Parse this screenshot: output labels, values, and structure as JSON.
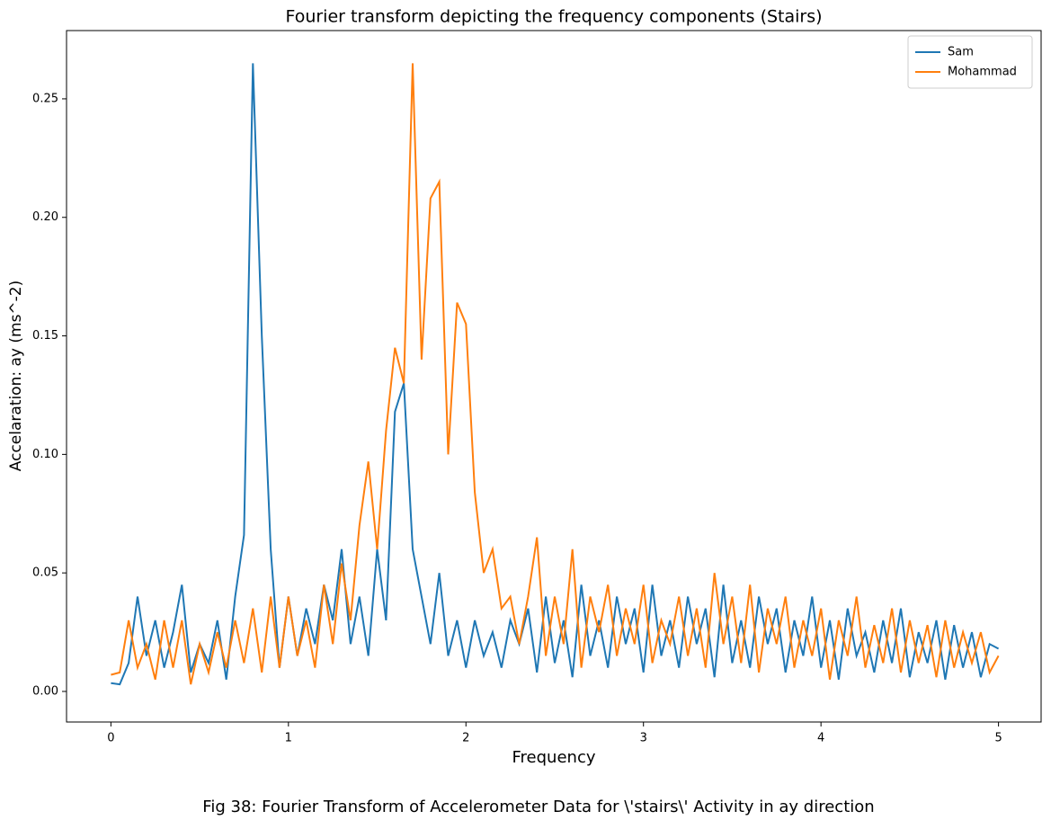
{
  "chart_data": {
    "type": "line",
    "title": "Fourier transform depicting the frequency components (Stairs)",
    "x_label": "Frequency",
    "y_label": "Accelaration: ay (ms^-2)",
    "caption": "Fig 38: Fourier Transform of Accelerometer Data for \\'stairs\\' Activity in ay direction",
    "x": [
      0,
      0.05,
      0.1,
      0.15,
      0.2,
      0.25,
      0.3,
      0.35,
      0.4,
      0.45,
      0.5,
      0.55,
      0.6,
      0.65,
      0.7,
      0.75,
      0.8,
      0.85,
      0.9,
      0.95,
      1,
      1.05,
      1.1,
      1.15,
      1.2,
      1.25,
      1.3,
      1.35,
      1.4,
      1.45,
      1.5,
      1.55,
      1.6,
      1.65,
      1.7,
      1.75,
      1.8,
      1.85,
      1.9,
      1.95,
      2,
      2.05,
      2.1,
      2.15,
      2.2,
      2.25,
      2.3,
      2.35,
      2.4,
      2.45,
      2.5,
      2.55,
      2.6,
      2.65,
      2.7,
      2.75,
      2.8,
      2.85,
      2.9,
      2.95,
      3,
      3.05,
      3.1,
      3.15,
      3.2,
      3.25,
      3.3,
      3.35,
      3.4,
      3.45,
      3.5,
      3.55,
      3.6,
      3.65,
      3.7,
      3.75,
      3.8,
      3.85,
      3.9,
      3.95,
      4,
      4.05,
      4.1,
      4.15,
      4.2,
      4.25,
      4.3,
      4.35,
      4.4,
      4.45,
      4.5,
      4.55,
      4.6,
      4.65,
      4.7,
      4.75,
      4.8,
      4.85,
      4.9,
      4.95,
      5
    ],
    "series": [
      {
        "name": "Sam",
        "color": "#1f77b4",
        "values": [
          0.0035,
          0.003,
          0.012,
          0.04,
          0.015,
          0.03,
          0.01,
          0.025,
          0.045,
          0.008,
          0.02,
          0.012,
          0.03,
          0.005,
          0.04,
          0.066,
          0.265,
          0.15,
          0.06,
          0.01,
          0.04,
          0.015,
          0.035,
          0.02,
          0.045,
          0.03,
          0.06,
          0.02,
          0.04,
          0.015,
          0.06,
          0.03,
          0.118,
          0.13,
          0.06,
          0.04,
          0.02,
          0.05,
          0.015,
          0.03,
          0.01,
          0.03,
          0.015,
          0.025,
          0.01,
          0.03,
          0.02,
          0.035,
          0.008,
          0.04,
          0.012,
          0.03,
          0.006,
          0.045,
          0.015,
          0.03,
          0.01,
          0.04,
          0.02,
          0.035,
          0.008,
          0.045,
          0.015,
          0.03,
          0.01,
          0.04,
          0.02,
          0.035,
          0.006,
          0.045,
          0.012,
          0.03,
          0.01,
          0.04,
          0.02,
          0.035,
          0.008,
          0.03,
          0.015,
          0.04,
          0.01,
          0.03,
          0.005,
          0.035,
          0.015,
          0.025,
          0.008,
          0.03,
          0.012,
          0.035,
          0.006,
          0.025,
          0.012,
          0.03,
          0.005,
          0.028,
          0.01,
          0.025,
          0.006,
          0.02,
          0.018
        ]
      },
      {
        "name": "Mohammad",
        "color": "#ff7f0e",
        "values": [
          0.007,
          0.008,
          0.03,
          0.01,
          0.02,
          0.005,
          0.03,
          0.01,
          0.03,
          0.003,
          0.02,
          0.008,
          0.025,
          0.01,
          0.03,
          0.012,
          0.035,
          0.008,
          0.04,
          0.01,
          0.04,
          0.015,
          0.03,
          0.01,
          0.045,
          0.02,
          0.054,
          0.03,
          0.07,
          0.097,
          0.06,
          0.11,
          0.145,
          0.13,
          0.265,
          0.14,
          0.208,
          0.215,
          0.1,
          0.164,
          0.155,
          0.084,
          0.05,
          0.06,
          0.035,
          0.04,
          0.02,
          0.04,
          0.065,
          0.015,
          0.04,
          0.02,
          0.06,
          0.01,
          0.04,
          0.025,
          0.045,
          0.015,
          0.035,
          0.02,
          0.045,
          0.012,
          0.03,
          0.02,
          0.04,
          0.015,
          0.035,
          0.01,
          0.05,
          0.02,
          0.04,
          0.012,
          0.045,
          0.008,
          0.035,
          0.02,
          0.04,
          0.01,
          0.03,
          0.015,
          0.035,
          0.005,
          0.03,
          0.015,
          0.04,
          0.01,
          0.028,
          0.012,
          0.035,
          0.008,
          0.03,
          0.012,
          0.028,
          0.006,
          0.03,
          0.01,
          0.025,
          0.012,
          0.025,
          0.008,
          0.015
        ]
      }
    ],
    "xlim": [
      -0.25,
      5.24
    ],
    "ylim": [
      -0.0129,
      0.2788
    ],
    "xticks": [
      0,
      1,
      2,
      3,
      4,
      5
    ],
    "yticks": [
      {
        "value": 0,
        "label": "0.00"
      },
      {
        "value": 0.05,
        "label": "0.05"
      },
      {
        "value": 0.1,
        "label": "0.10"
      },
      {
        "value": 0.15,
        "label": "0.15"
      },
      {
        "value": 0.2,
        "label": "0.20"
      },
      {
        "value": 0.25,
        "label": "0.25"
      }
    ],
    "legend": "upper right"
  }
}
